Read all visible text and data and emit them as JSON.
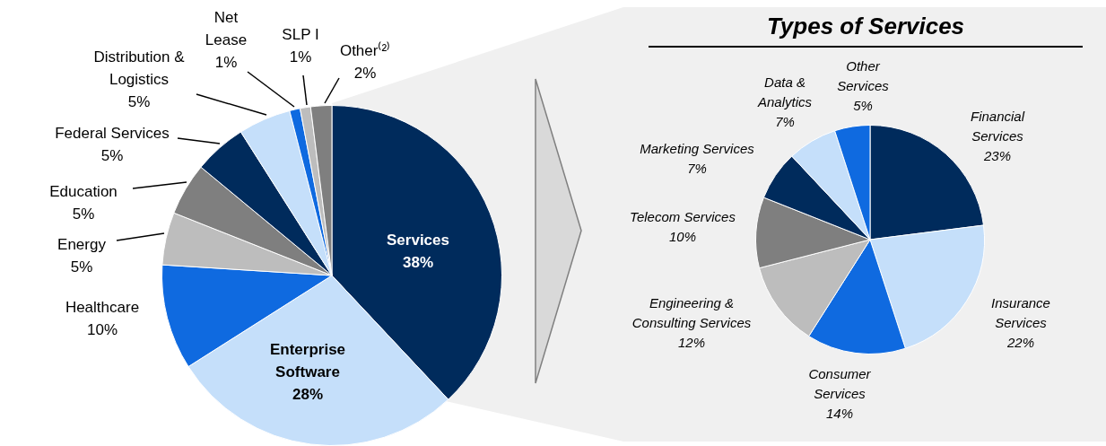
{
  "chart_data": [
    {
      "type": "pie",
      "categories": [
        "Services",
        "Enterprise Software",
        "Healthcare",
        "Energy",
        "Education",
        "Federal Services",
        "Distribution & Logistics",
        "Net Lease",
        "SLP I",
        "Other⁽²⁾"
      ],
      "values": [
        38,
        28,
        10,
        5,
        5,
        5,
        5,
        1,
        1,
        2
      ],
      "value_labels": [
        "38%",
        "28%",
        "10%",
        "5%",
        "5%",
        "5%",
        "5%",
        "1%",
        "1%",
        "2%"
      ],
      "colors": [
        "#002b5c",
        "#c5dffa",
        "#0f6ae0",
        "#bdbdbd",
        "#7f7f7f",
        "#002b5c",
        "#c5dffa",
        "#0f6ae0",
        "#bdbdbd",
        "#7f7f7f"
      ]
    },
    {
      "type": "pie",
      "title": "Types of Services",
      "categories": [
        "Financial Services",
        "Insurance Services",
        "Consumer Services",
        "Engineering & Consulting Services",
        "Telecom Services",
        "Marketing Services",
        "Data & Analytics",
        "Other Services"
      ],
      "values": [
        23,
        22,
        14,
        12,
        10,
        7,
        7,
        5
      ],
      "value_labels": [
        "23%",
        "22%",
        "14%",
        "12%",
        "10%",
        "7%",
        "7%",
        "5%"
      ],
      "colors": [
        "#002b5c",
        "#c5dffa",
        "#0f6ae0",
        "#bdbdbd",
        "#7f7f7f",
        "#002b5c",
        "#c5dffa",
        "#0f6ae0"
      ]
    }
  ]
}
